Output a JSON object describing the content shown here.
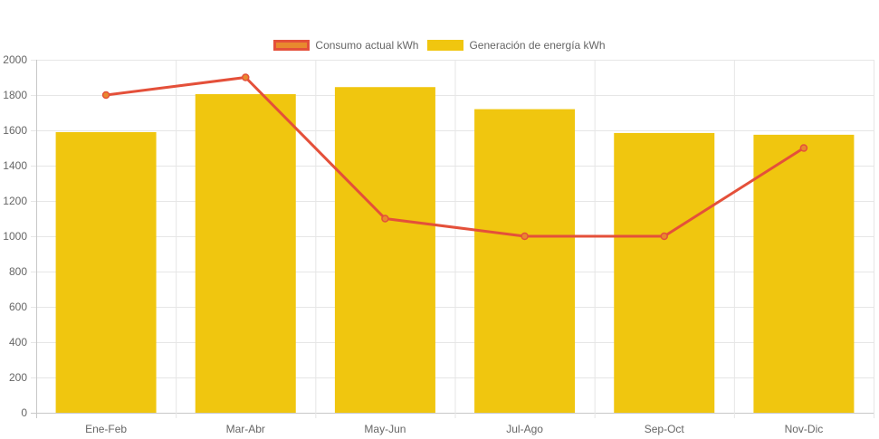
{
  "chart_data": {
    "type": "bar",
    "categories": [
      "Ene-Feb",
      "Mar-Abr",
      "May-Jun",
      "Jul-Ago",
      "Sep-Oct",
      "Nov-Dic"
    ],
    "series": [
      {
        "name": "Consumo actual kWh",
        "type": "line",
        "color": "#e4503a",
        "fill_color": "#e8892e",
        "values": [
          1800,
          1900,
          1100,
          1000,
          1000,
          1500
        ]
      },
      {
        "name": "Generación de energía kWh",
        "type": "bar",
        "color": "#f0c60f",
        "values": [
          1590,
          1805,
          1845,
          1720,
          1585,
          1575
        ]
      }
    ],
    "ylim": [
      0,
      2000
    ],
    "yticks": [
      0,
      200,
      400,
      600,
      800,
      1000,
      1200,
      1400,
      1600,
      1800,
      2000
    ],
    "grid": true,
    "legend_position": "top-center"
  }
}
